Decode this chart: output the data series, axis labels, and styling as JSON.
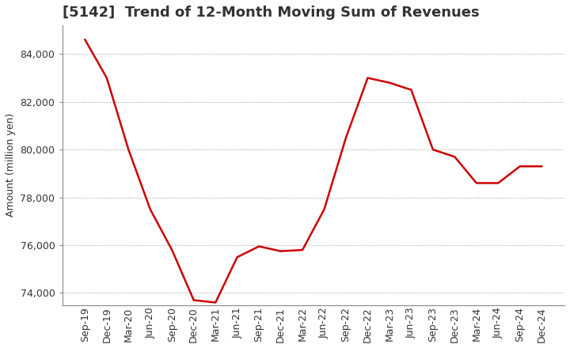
{
  "title": "[5142]  Trend of 12-Month Moving Sum of Revenues",
  "ylabel": "Amount (million yen)",
  "line_color": "#cc0000",
  "background_color": "#ffffff",
  "plot_bg_color": "#ffffff",
  "grid_color": "#999999",
  "x_labels": [
    "Sep-19",
    "Dec-19",
    "Mar-20",
    "Jun-20",
    "Sep-20",
    "Dec-20",
    "Mar-21",
    "Jun-21",
    "Sep-21",
    "Dec-21",
    "Mar-22",
    "Jun-22",
    "Sep-22",
    "Dec-22",
    "Mar-23",
    "Jun-23",
    "Sep-23",
    "Dec-23",
    "Mar-24",
    "Jun-24",
    "Sep-24",
    "Dec-24"
  ],
  "values": [
    84600,
    83000,
    80000,
    77500,
    75800,
    73700,
    73600,
    75500,
    75950,
    75750,
    75800,
    77500,
    80500,
    83000,
    82800,
    82500,
    80000,
    79700,
    78600,
    78600,
    79300,
    79300
  ],
  "ylim": [
    73500,
    85200
  ],
  "yticks": [
    74000,
    76000,
    78000,
    80000,
    82000,
    84000
  ],
  "title_fontsize": 13,
  "ylabel_fontsize": 9,
  "tick_fontsize": 9
}
